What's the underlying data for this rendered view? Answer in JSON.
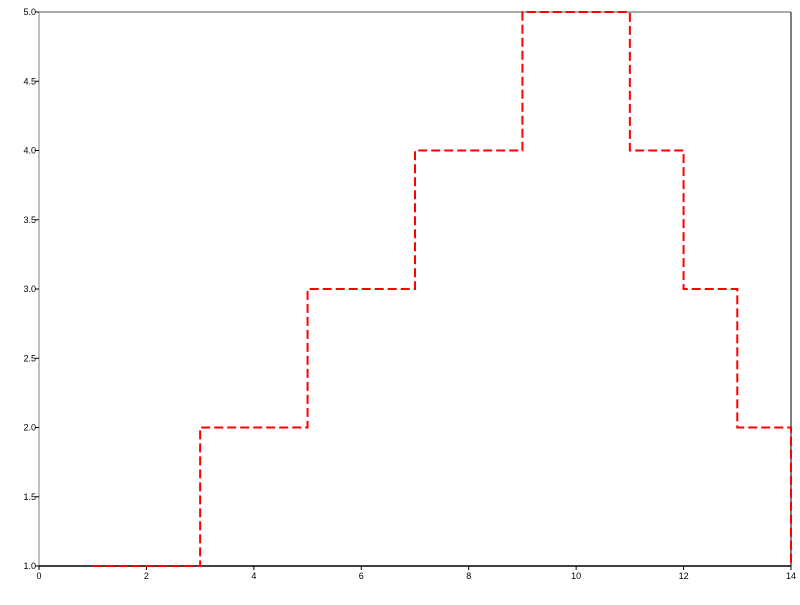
{
  "chart_data": {
    "type": "line",
    "step": "post",
    "title": "",
    "xlabel": "",
    "ylabel": "",
    "xlim": [
      0,
      14
    ],
    "ylim": [
      1.0,
      5.0
    ],
    "xticks": [
      "0",
      "2",
      "4",
      "6",
      "8",
      "10",
      "12",
      "14"
    ],
    "yticks": [
      "1.0",
      "1.5",
      "2.0",
      "2.5",
      "3.0",
      "3.5",
      "4.0",
      "4.5",
      "5.0"
    ],
    "grid": false,
    "series": [
      {
        "x": [
          1,
          3,
          5,
          7,
          9,
          11,
          12,
          13,
          14
        ],
        "y": [
          1,
          2,
          3,
          4,
          5,
          4,
          3,
          2,
          1
        ],
        "color": "#ff0000",
        "linestyle": "dashed"
      }
    ]
  }
}
